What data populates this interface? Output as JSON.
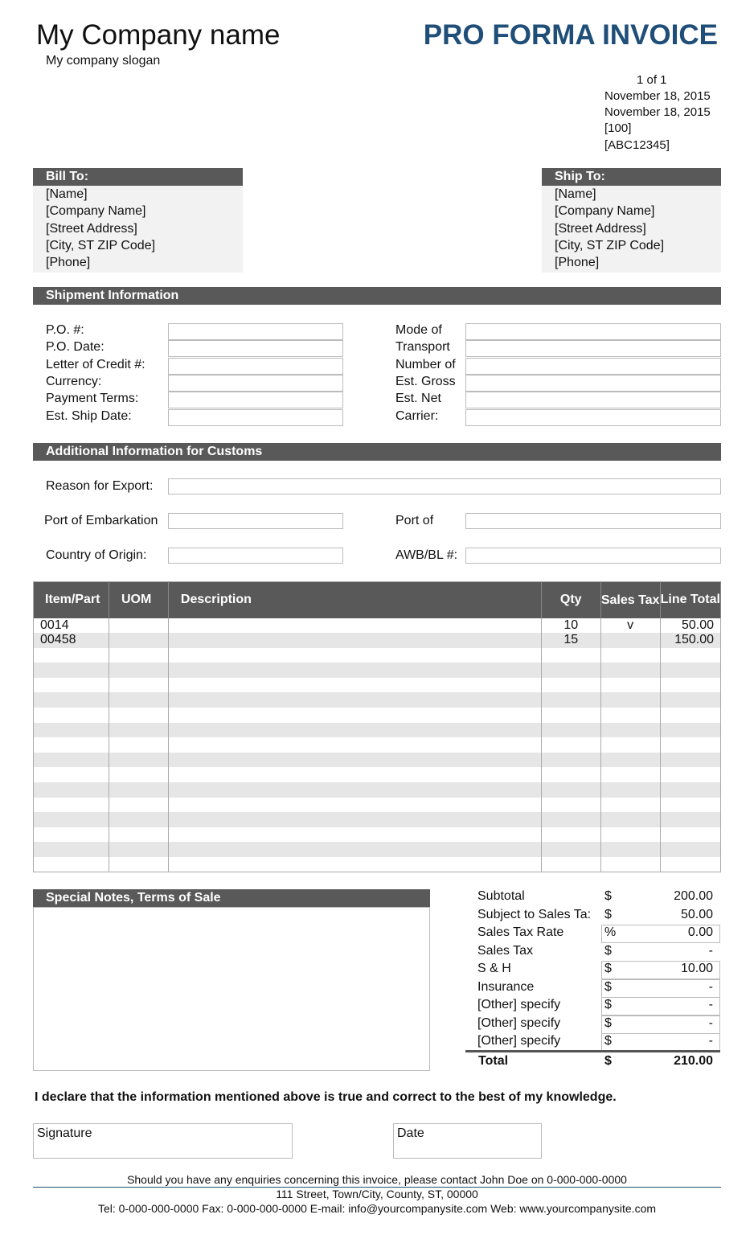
{
  "header": {
    "company_name": "My Company name",
    "slogan": "My company slogan",
    "title": "PRO FORMA INVOICE",
    "title_color": "#1f4e79",
    "meta": [
      "1 of 1",
      "November 18, 2015",
      "November 18, 2015",
      "[100]",
      "[ABC12345]"
    ]
  },
  "bill_to": {
    "title": "Bill To:",
    "lines": [
      "[Name]",
      "[Company Name]",
      "[Street Address]",
      "[City, ST  ZIP Code]",
      "[Phone]"
    ]
  },
  "ship_to": {
    "title": "Ship To:",
    "lines": [
      "[Name]",
      "[Company Name]",
      "[Street Address]",
      "[City, ST  ZIP Code]",
      "[Phone]"
    ]
  },
  "shipment": {
    "title": "Shipment Information",
    "left": [
      "P.O. #:",
      "P.O. Date:",
      "Letter of Credit #:",
      "Currency:",
      "Payment Terms:",
      "Est. Ship Date:"
    ],
    "right": [
      "Mode of",
      "Transport",
      "Number of",
      "Est. Gross",
      "Est. Net",
      "Carrier:"
    ]
  },
  "customs": {
    "title": "Additional Information for Customs",
    "reason": "Reason for Export:",
    "embark": "Port of Embarkation",
    "port_of": "Port of",
    "origin": "Country of Origin:",
    "awb": "AWB/BL #:"
  },
  "items": {
    "headers": [
      "Item/Part",
      "UOM",
      "Description",
      "Qty",
      "Sales Tax",
      "Line Total"
    ],
    "rows": [
      [
        "0014",
        "",
        "",
        "10",
        "v",
        "50.00"
      ],
      [
        "00458",
        "",
        "",
        "15",
        "",
        "150.00"
      ]
    ],
    "empty_rows": 15
  },
  "notes": {
    "title": "Special Notes, Terms of Sale"
  },
  "totals": [
    {
      "label": "Subtotal",
      "sym": "$",
      "value": "200.00"
    },
    {
      "label": "Subject to Sales Ta:",
      "sym": "$",
      "value": "50.00"
    },
    {
      "label": "Sales Tax Rate",
      "sym": "%",
      "value": "0.00"
    },
    {
      "label": "Sales Tax",
      "sym": "$",
      "value": "-"
    },
    {
      "label": "S & H",
      "sym": "$",
      "value": "10.00"
    },
    {
      "label": "Insurance",
      "sym": "$",
      "value": "-"
    },
    {
      "label": "[Other] specify",
      "sym": "$",
      "value": "-"
    },
    {
      "label": "[Other] specify",
      "sym": "$",
      "value": "-"
    },
    {
      "label": "[Other] specify",
      "sym": "$",
      "value": "-"
    }
  ],
  "total": {
    "label": "Total",
    "sym": "$",
    "value": "210.00"
  },
  "declaration": "I declare that the information mentioned above is true and correct to the best of my knowledge.",
  "signature": "Signature",
  "date": "Date",
  "footer": [
    "Should you have any enquiries concerning this invoice, please contact John Doe on 0-000-000-0000",
    "111 Street, Town/City, County, ST, 00000",
    "Tel: 0-000-000-0000 Fax: 0-000-000-0000 E-mail: info@yourcompanysite.com Web: www.yourcompanysite.com"
  ]
}
